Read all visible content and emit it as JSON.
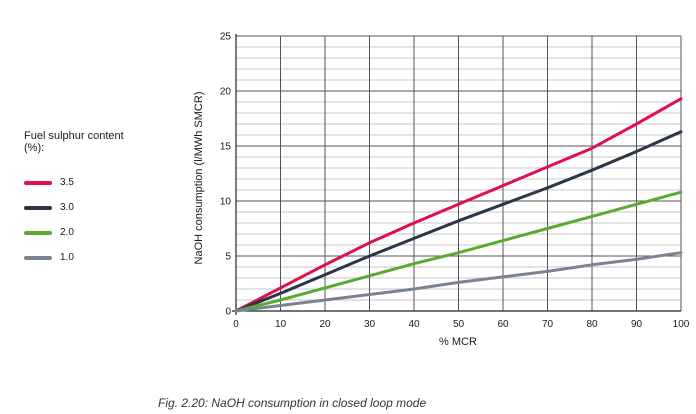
{
  "caption": "Fig. 2.20: NaOH consumption in closed loop mode",
  "legend": {
    "title": "Fuel sulphur content (%):",
    "items": [
      {
        "label": "3.5",
        "color": "#e0104a"
      },
      {
        "label": "3.0",
        "color": "#2b3646"
      },
      {
        "label": "2.0",
        "color": "#5aaa32"
      },
      {
        "label": "1.0",
        "color": "#7a8490"
      }
    ]
  },
  "chart_data": {
    "type": "line",
    "xlabel": "% MCR",
    "ylabel": "NaOH consumption (l/MWh SMCR)",
    "xlim": [
      0,
      100
    ],
    "ylim": [
      0,
      25
    ],
    "xticks": [
      0,
      10,
      20,
      30,
      40,
      50,
      60,
      70,
      80,
      90,
      100
    ],
    "yticks": [
      0,
      5,
      10,
      15,
      20,
      25
    ],
    "grid": true,
    "legend_position": "left",
    "series": [
      {
        "name": "3.5",
        "color": "#e0104a",
        "x": [
          0,
          10,
          20,
          30,
          40,
          50,
          60,
          70,
          80,
          90,
          100
        ],
        "y": [
          0,
          2.1,
          4.2,
          6.2,
          8.0,
          9.7,
          11.4,
          13.1,
          14.8,
          17.0,
          19.3
        ]
      },
      {
        "name": "3.0",
        "color": "#2b3646",
        "x": [
          0,
          10,
          20,
          30,
          40,
          50,
          60,
          70,
          80,
          90,
          100
        ],
        "y": [
          0,
          1.6,
          3.3,
          5.0,
          6.6,
          8.2,
          9.7,
          11.2,
          12.8,
          14.5,
          16.3
        ]
      },
      {
        "name": "2.0",
        "color": "#5aaa32",
        "x": [
          0,
          10,
          20,
          30,
          40,
          50,
          60,
          70,
          80,
          90,
          100
        ],
        "y": [
          0,
          1.0,
          2.1,
          3.2,
          4.3,
          5.3,
          6.4,
          7.5,
          8.6,
          9.7,
          10.8
        ]
      },
      {
        "name": "1.0",
        "color": "#7a8490",
        "x": [
          0,
          10,
          20,
          30,
          40,
          50,
          60,
          70,
          80,
          90,
          100
        ],
        "y": [
          0,
          0.5,
          1.0,
          1.5,
          2.0,
          2.6,
          3.1,
          3.6,
          4.2,
          4.7,
          5.3
        ]
      }
    ]
  }
}
